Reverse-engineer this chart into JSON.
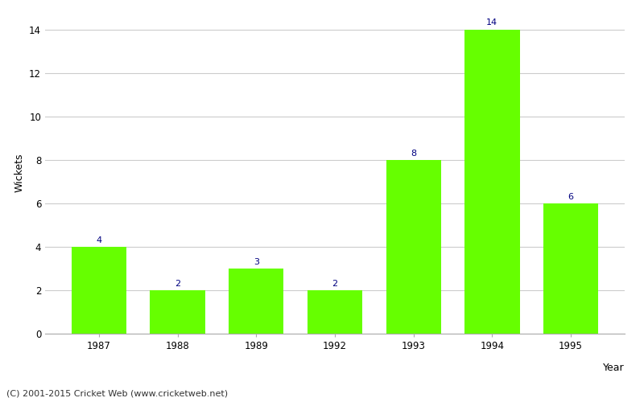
{
  "years": [
    "1987",
    "1988",
    "1989",
    "1992",
    "1993",
    "1994",
    "1995"
  ],
  "wickets": [
    4,
    2,
    3,
    2,
    8,
    14,
    6
  ],
  "bar_color": "#66ff00",
  "bar_edge_color": "#66ff00",
  "xlabel": "Year",
  "ylabel": "Wickets",
  "ylim": [
    0,
    14.8
  ],
  "yticks": [
    0,
    2,
    4,
    6,
    8,
    10,
    12,
    14
  ],
  "label_color": "#000080",
  "label_fontsize": 8,
  "axis_fontsize": 9,
  "tick_fontsize": 8.5,
  "grid_color": "#cccccc",
  "background_color": "#ffffff",
  "footer_text": "(C) 2001-2015 Cricket Web (www.cricketweb.net)",
  "footer_fontsize": 8,
  "footer_color": "#333333"
}
